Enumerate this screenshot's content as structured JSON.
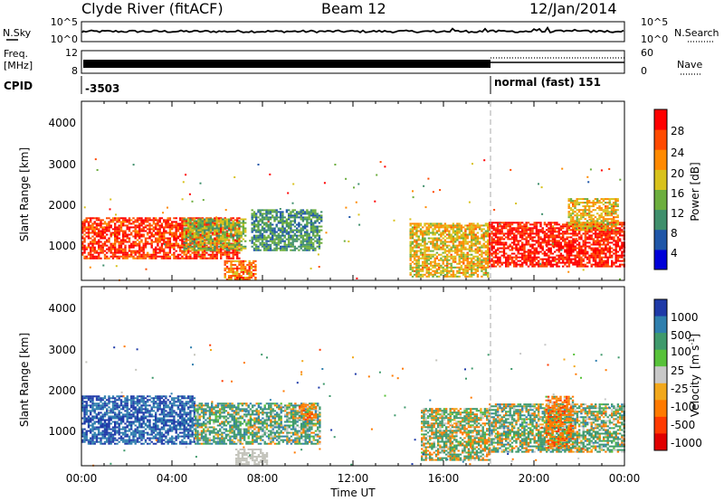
{
  "header": {
    "site": "Clyde River (fitACF)",
    "beam": "Beam 12",
    "date": "12/Jan/2014"
  },
  "noise_panel": {
    "left_label": "N.Sky",
    "left_ticks": [
      "10^5",
      "10^0"
    ],
    "right_label": "N.Search",
    "right_ticks": [
      "10^5",
      "10^0"
    ]
  },
  "freq_panel": {
    "left_label_line1": "Freq.",
    "left_label_line2": "[MHz]",
    "left_ticks": [
      "12",
      "8"
    ],
    "right_label": "Nave",
    "right_ticks": [
      "60",
      "0"
    ]
  },
  "cpid_panel": {
    "label": "CPID",
    "segments": [
      {
        "start_hour": 0,
        "text": "-3503"
      },
      {
        "start_hour": 18,
        "text": "normal (fast) 151"
      }
    ]
  },
  "power_panel": {
    "ylabel": "Slant Range [km]",
    "yticks": [
      "4000",
      "3000",
      "2000",
      "1000"
    ],
    "colorbar_label": "Power [dB]",
    "colorbar_ticks": [
      "28",
      "24",
      "20",
      "16",
      "12",
      "8",
      "4"
    ],
    "colors": [
      "#0000d8",
      "#1f56a8",
      "#3f8f6c",
      "#6cae3e",
      "#d8c21c",
      "#ff8a00",
      "#ff4a00",
      "#ff0000"
    ]
  },
  "velocity_panel": {
    "ylabel": "Slant Range [km]",
    "yticks": [
      "4000",
      "3000",
      "2000",
      "1000"
    ],
    "colorbar_label_main": "Velocity",
    "colorbar_label_units": "[m s",
    "colorbar_label_sup": "-1",
    "colorbar_label_close": "]",
    "colorbar_ticks": [
      "1000",
      "500",
      "100",
      "25",
      "-25",
      "-100",
      "-500",
      "-1000"
    ],
    "colors": [
      "#1f3aa8",
      "#2f7fae",
      "#3f9a6c",
      "#58c23a",
      "#c8c8c8",
      "#f2a81c",
      "#ff7a00",
      "#ff3a00",
      "#e00000"
    ],
    "ground_scatter_color": "#c4c4bc"
  },
  "xaxis": {
    "ticks": [
      "00:00",
      "04:00",
      "08:00",
      "12:00",
      "16:00",
      "20:00",
      "00:00"
    ],
    "label": "Time UT"
  },
  "chart_data": [
    {
      "type": "heatmap",
      "title": "",
      "xlabel": "Time UT",
      "ylabel": "Slant Range [km]",
      "xlim": [
        0,
        24
      ],
      "ylim": [
        180,
        4600
      ],
      "color_quantity": "Power [dB]",
      "color_range": [
        0,
        30
      ],
      "regions": [
        {
          "t": [
            0.0,
            7.0
          ],
          "range": [
            700,
            1700
          ],
          "power_db": 26
        },
        {
          "t": [
            4.5,
            7.2
          ],
          "range": [
            900,
            1700
          ],
          "power_db": 14
        },
        {
          "t": [
            6.3,
            7.7
          ],
          "range": [
            180,
            650
          ],
          "power_db": 22
        },
        {
          "t": [
            7.5,
            10.6
          ],
          "range": [
            900,
            1900
          ],
          "power_db": 10
        },
        {
          "t": [
            14.5,
            18.0
          ],
          "range": [
            250,
            1600
          ],
          "power_db": 18
        },
        {
          "t": [
            18.0,
            24.0
          ],
          "range": [
            500,
            1600
          ],
          "power_db": 28
        },
        {
          "t": [
            21.5,
            23.7
          ],
          "range": [
            1400,
            2200
          ],
          "power_db": 18
        }
      ]
    },
    {
      "type": "heatmap",
      "title": "",
      "xlabel": "Time UT",
      "ylabel": "Slant Range [km]",
      "xlim": [
        0,
        24
      ],
      "ylim": [
        180,
        4600
      ],
      "color_quantity": "Velocity [m s-1]",
      "color_range": [
        -1000,
        1000
      ],
      "regions": [
        {
          "t": [
            0.0,
            5.0
          ],
          "range": [
            700,
            1900
          ],
          "velocity": 700
        },
        {
          "t": [
            5.0,
            10.5
          ],
          "range": [
            700,
            1700
          ],
          "velocity": 150
        },
        {
          "t": [
            6.8,
            8.2
          ],
          "range": [
            200,
            600
          ],
          "velocity": 0,
          "ground_scatter": true
        },
        {
          "t": [
            15.0,
            18.0
          ],
          "range": [
            300,
            1600
          ],
          "velocity": 50
        },
        {
          "t": [
            18.0,
            24.0
          ],
          "range": [
            500,
            1700
          ],
          "velocity": 100
        },
        {
          "t": [
            20.5,
            21.7
          ],
          "range": [
            600,
            1900
          ],
          "velocity": -150
        },
        {
          "t": [
            9.6,
            10.4
          ],
          "range": [
            1300,
            1700
          ],
          "velocity": -150
        }
      ]
    }
  ]
}
